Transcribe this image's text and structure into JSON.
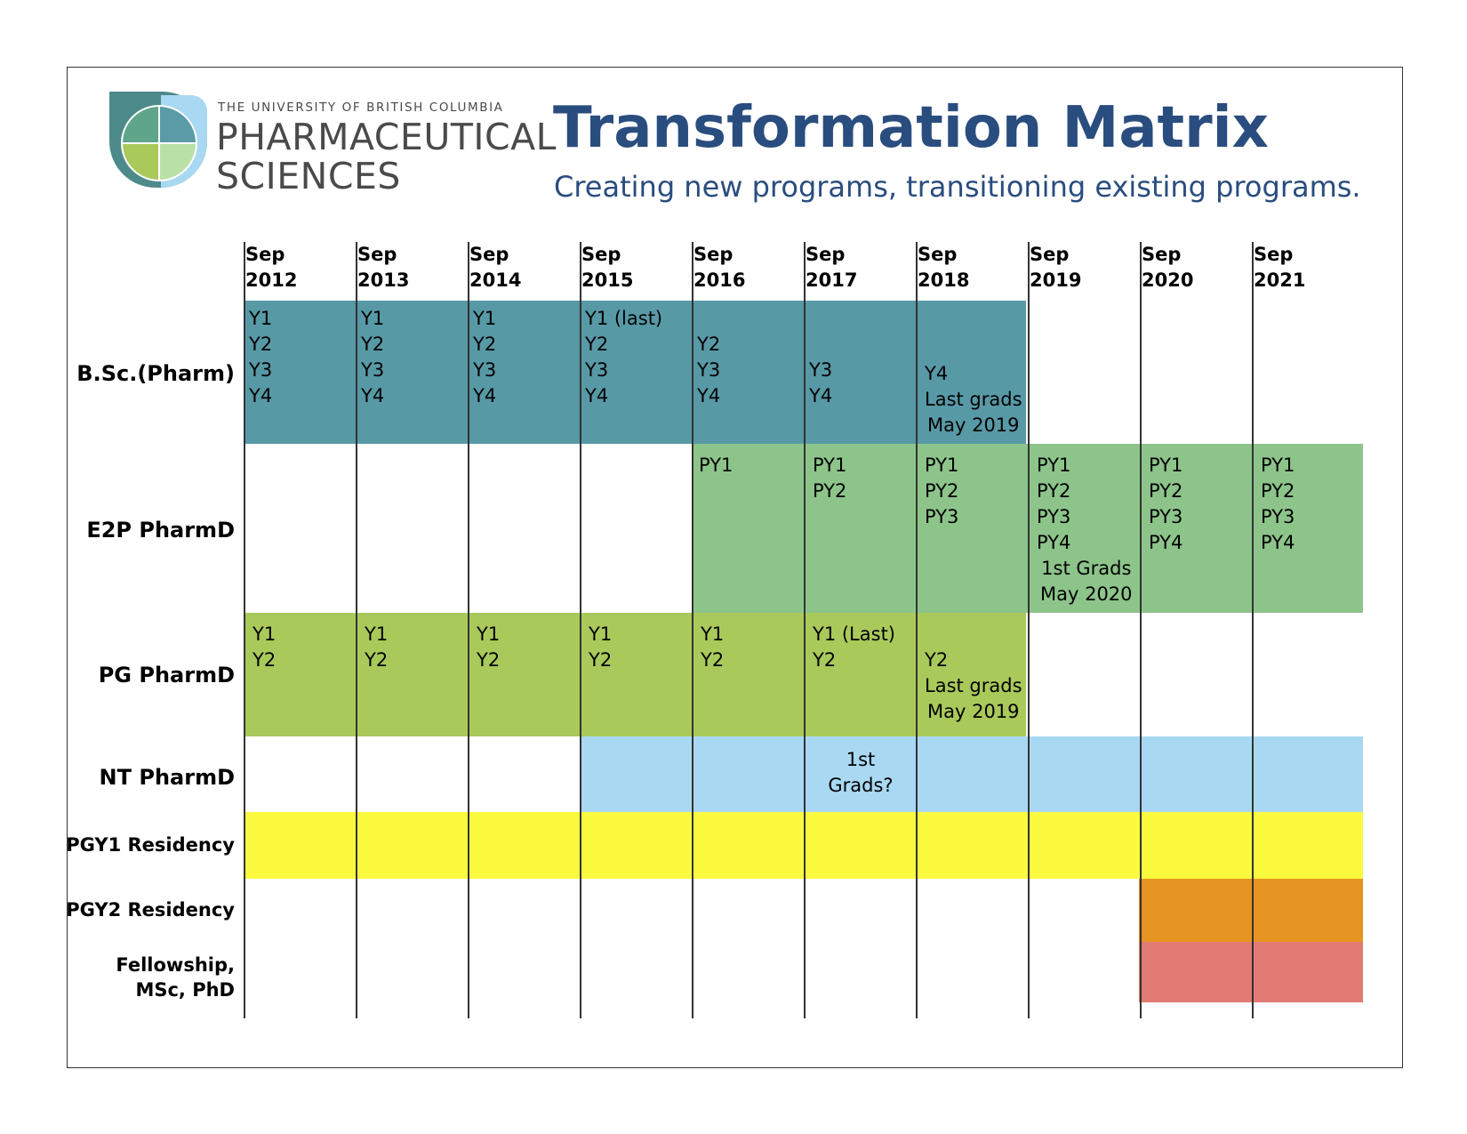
{
  "logo": {
    "university": "THE UNIVERSITY OF BRITISH COLUMBIA",
    "line1": "PHARMACEUTICAL",
    "line2": "SCIENCES"
  },
  "title": "Transformation Matrix",
  "subtitle": "Creating new programs, transitioning existing programs.",
  "columns": [
    {
      "month": "Sep",
      "year": "2012"
    },
    {
      "month": "Sep",
      "year": "2013"
    },
    {
      "month": "Sep",
      "year": "2014"
    },
    {
      "month": "Sep",
      "year": "2015"
    },
    {
      "month": "Sep",
      "year": "2016"
    },
    {
      "month": "Sep",
      "year": "2017"
    },
    {
      "month": "Sep",
      "year": "2018"
    },
    {
      "month": "Sep",
      "year": "2019"
    },
    {
      "month": "Sep",
      "year": "2020"
    },
    {
      "month": "Sep",
      "year": "2021"
    }
  ],
  "rows": {
    "bsc": {
      "label": "B.Sc.(Pharm)",
      "color": "#5899a6",
      "cells": [
        [
          "Y1",
          "Y2",
          "Y3",
          "Y4"
        ],
        [
          "Y1",
          "Y2",
          "Y3",
          "Y4"
        ],
        [
          "Y1",
          "Y2",
          "Y3",
          "Y4"
        ],
        [
          "Y1 (last)",
          "Y2",
          "Y3",
          "Y4"
        ],
        [
          "Y2",
          "Y3",
          "Y4"
        ],
        [
          "Y3",
          "Y4"
        ],
        [
          "Y4",
          "Last grads",
          "May 2019"
        ]
      ]
    },
    "e2p": {
      "label": "E2P PharmD",
      "color": "#8dc48a",
      "cells": [
        [
          "PY1"
        ],
        [
          "PY1",
          "PY2"
        ],
        [
          "PY1",
          "PY2",
          "PY3"
        ],
        [
          "PY1",
          "PY2",
          "PY3",
          "PY4"
        ],
        [
          "PY1",
          "PY2",
          "PY3",
          "PY4"
        ],
        [
          "PY1",
          "PY2",
          "PY3",
          "PY4"
        ]
      ],
      "note": [
        "1st Grads",
        "May 2020"
      ]
    },
    "pg": {
      "label": "PG PharmD",
      "color": "#a9c95a",
      "cells": [
        [
          "Y1",
          "Y2"
        ],
        [
          "Y1",
          "Y2"
        ],
        [
          "Y1",
          "Y2"
        ],
        [
          "Y1",
          "Y2"
        ],
        [
          "Y1",
          "Y2"
        ],
        [
          "Y1 (Last)",
          "Y2"
        ],
        [
          "Y2",
          "Last grads",
          "May 2019"
        ]
      ]
    },
    "nt": {
      "label": "NT PharmD",
      "color": "#a8d8f2",
      "note": [
        "1st",
        "Grads?"
      ]
    },
    "pgy1": {
      "label": "PGY1 Residency",
      "color": "#fbfa3e"
    },
    "pgy2": {
      "label": "PGY2 Residency",
      "color": "#e69421"
    },
    "fellow": {
      "label": [
        "Fellowship,",
        "MSc, PhD"
      ],
      "color": "#e27b74"
    }
  }
}
